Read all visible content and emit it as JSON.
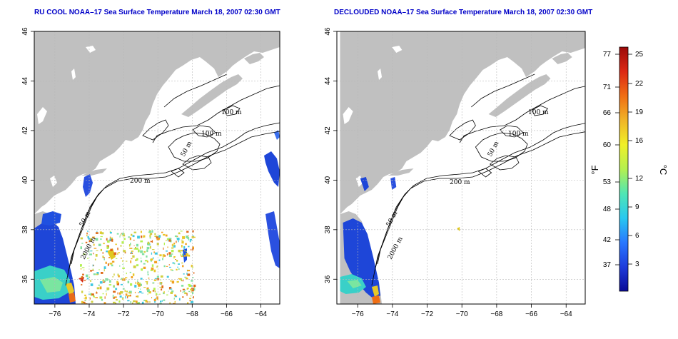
{
  "titles": {
    "left": "RU COOL NOAA–17 Sea Surface Temperature March 18, 2007 02:30 GMT",
    "right": "DECLOUDED NOAA–17 Sea Surface Temperature March 18, 2007 02:30 GMT"
  },
  "map": {
    "lon_ticks": [
      "−76",
      "−74",
      "−72",
      "−70",
      "−68",
      "−66",
      "−64"
    ],
    "lat_ticks": [
      "36",
      "38",
      "40",
      "42",
      "44",
      "46"
    ],
    "lon_range": [
      -77.2,
      -62.9
    ],
    "lat_range": [
      35.0,
      46.0
    ],
    "grid": true,
    "land_color": "#c0c0c0",
    "ocean_color": "#ffffff",
    "contour_labels_left": [
      "100 m",
      "100 m",
      "50 m",
      "200 m",
      "50 m",
      "2000 m"
    ],
    "contour_labels_right": [
      "100 m",
      "100 m",
      "50 m",
      "200 m",
      "50 m",
      "2000 m"
    ]
  },
  "colorbar": {
    "fahrenheit_ticks": [
      "77",
      "71",
      "66",
      "60",
      "53",
      "48",
      "42",
      "37"
    ],
    "celsius_ticks": [
      "25",
      "22",
      "19",
      "16",
      "12",
      "9",
      "6",
      "3"
    ],
    "fahrenheit_unit": "°F",
    "celsius_unit": "°C",
    "colors": [
      "#0a0a96",
      "#1e3cdc",
      "#2878ff",
      "#28c8f0",
      "#50e6b4",
      "#b4f050",
      "#f0f028",
      "#f0b428",
      "#f06e14",
      "#dc2814",
      "#9b0a0a"
    ]
  }
}
